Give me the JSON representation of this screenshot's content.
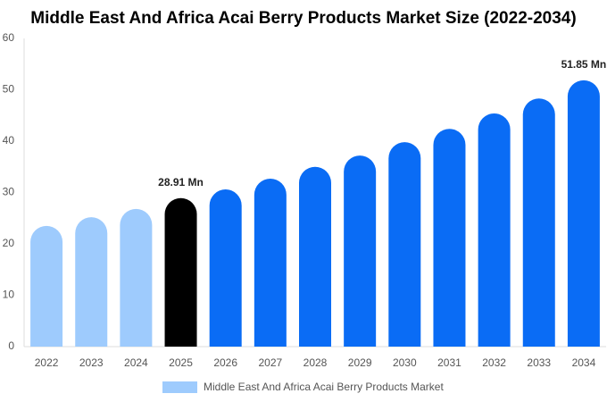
{
  "chart_data": {
    "type": "bar",
    "title": "Middle East And Africa Acai Berry Products Market Size (2022-2034)",
    "categories": [
      "2022",
      "2023",
      "2024",
      "2025",
      "2026",
      "2027",
      "2028",
      "2029",
      "2030",
      "2031",
      "2032",
      "2033",
      "2034"
    ],
    "series": [
      {
        "name": "Middle East And Africa Acai Berry Products Market",
        "color": "#9ecbfd",
        "colors": [
          "#9ecbfd",
          "#9ecbfd",
          "#9ecbfd",
          "#000000",
          "#0a6cf5",
          "#0a6cf5",
          "#0a6cf5",
          "#0a6cf5",
          "#0a6cf5",
          "#0a6cf5",
          "#0a6cf5",
          "#0a6cf5",
          "#0a6cf5"
        ],
        "values": [
          23.5,
          25.2,
          26.8,
          28.91,
          30.6,
          32.7,
          35.0,
          37.2,
          39.8,
          42.4,
          45.4,
          48.3,
          51.85
        ],
        "value_labels": [
          null,
          null,
          null,
          "28.91 Mn",
          null,
          null,
          null,
          null,
          null,
          null,
          null,
          null,
          "51.85 Mn"
        ]
      }
    ],
    "ylim": [
      0,
      60
    ],
    "yticks": [
      0,
      10,
      20,
      30,
      40,
      50,
      60
    ],
    "grid": false
  }
}
